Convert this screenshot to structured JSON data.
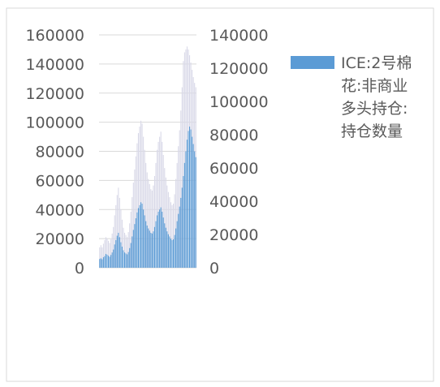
{
  "chart_data": {
    "type": "bar",
    "legend_position": "right",
    "legend_entries": [
      "ICE:2号棉花:非商业多头持仓:持仓数量"
    ],
    "legend_lines": [
      "ICE:2号棉",
      "花:非商业",
      "多头持仓:",
      "持仓数量"
    ],
    "left_axis": {
      "ticks": [
        "160000",
        "140000",
        "120000",
        "100000",
        "80000",
        "60000",
        "40000",
        "20000",
        "0"
      ],
      "ylim": [
        0,
        160000
      ]
    },
    "right_axis": {
      "ticks": [
        "140000",
        "120000",
        "100000",
        "80000",
        "60000",
        "40000",
        "20000",
        "0"
      ],
      "ylim": [
        0,
        140000
      ]
    },
    "series": [
      {
        "name": "ICE:2号棉花:非商业多头持仓:持仓数量",
        "color": "#5b9bd5",
        "values": [
          6000,
          6500,
          5800,
          7200,
          8000,
          9500,
          9000,
          8200,
          7500,
          8800,
          10500,
          12500,
          16000,
          19000,
          22000,
          24000,
          21000,
          17500,
          14500,
          12000,
          10500,
          9800,
          9200,
          10800,
          13500,
          17000,
          21500,
          26000,
          30000,
          34000,
          38000,
          41000,
          43000,
          45000,
          44000,
          40000,
          36000,
          32000,
          29000,
          27000,
          25500,
          24000,
          23500,
          25000,
          28000,
          32000,
          36000,
          38500,
          40000,
          41500,
          38500,
          34500,
          30500,
          27500,
          25000,
          23000,
          21500,
          20000,
          19000,
          19500,
          22500,
          27000,
          32000,
          37000,
          42000,
          48000,
          55000,
          63000,
          72000,
          80000,
          88000,
          94000,
          97000,
          95000,
          90000,
          85000,
          80000,
          76000
        ]
      },
      {
        "name": "",
        "color": "#d9d9e8",
        "values": [
          14000,
          15500,
          14000,
          16500,
          19000,
          21000,
          20000,
          18500,
          17000,
          19500,
          23500,
          28000,
          36000,
          43000,
          50000,
          55000,
          48000,
          40000,
          33000,
          27500,
          24000,
          22500,
          21000,
          24500,
          30500,
          38500,
          48500,
          58500,
          67500,
          76500,
          85500,
          92500,
          97000,
          101000,
          99000,
          90000,
          81000,
          72000,
          65500,
          61000,
          57500,
          54000,
          53000,
          56500,
          63000,
          72000,
          81000,
          86500,
          90000,
          93500,
          86500,
          77500,
          68500,
          62000,
          56500,
          52000,
          48500,
          45000,
          43000,
          44000,
          50500,
          61000,
          72000,
          83500,
          94500,
          108000,
          124000,
          142000,
          148000,
          150000,
          152000,
          150000,
          146000,
          141000,
          136000,
          131000,
          127000,
          124000
        ]
      }
    ]
  }
}
